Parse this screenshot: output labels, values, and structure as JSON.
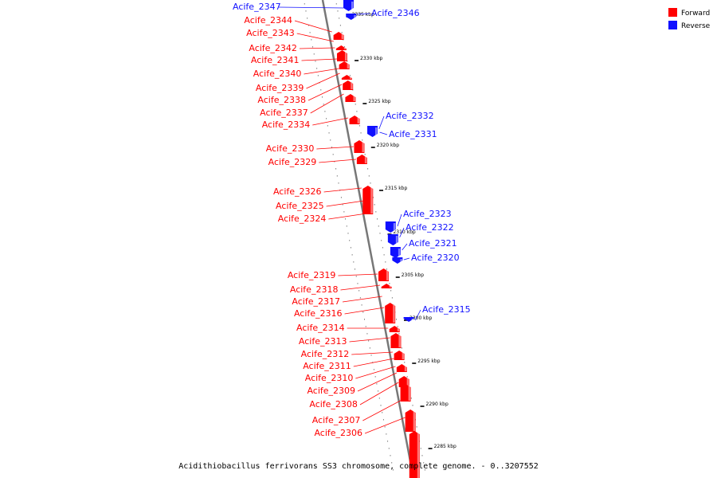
{
  "colors": {
    "forward": "#ff0000",
    "reverse": "#1010ff",
    "backbone": "#777777"
  },
  "legend": {
    "forward": "Forward",
    "reverse": "Reverse"
  },
  "caption": "Acidithiobacillus ferrivorans SS3 chromosome, complete genome. - 0..3207552",
  "ticks": [
    "2335 kbp",
    "2330 kbp",
    "2325 kbp",
    "2320 kbp",
    "2315 kbp",
    "2310 kbp",
    "2305 kbp",
    "2300 kbp",
    "2295 kbp",
    "2290 kbp",
    "2285 kbp"
  ],
  "genes": {
    "forward": [
      "Acife_2344",
      "Acife_2343",
      "Acife_2342",
      "Acife_2341",
      "Acife_2340",
      "Acife_2339",
      "Acife_2338",
      "Acife_2337",
      "Acife_2334",
      "Acife_2330",
      "Acife_2329",
      "Acife_2326",
      "Acife_2325",
      "Acife_2324",
      "Acife_2319",
      "Acife_2318",
      "Acife_2317",
      "Acife_2316",
      "Acife_2314",
      "Acife_2313",
      "Acife_2312",
      "Acife_2311",
      "Acife_2310",
      "Acife_2309",
      "Acife_2308",
      "Acife_2307",
      "Acife_2306"
    ],
    "reverse": [
      "Acife_2347",
      "Acife_2346",
      "Acife_2332",
      "Acife_2331",
      "Acife_2323",
      "Acife_2322",
      "Acife_2321",
      "Acife_2320",
      "Acife_2315"
    ]
  }
}
